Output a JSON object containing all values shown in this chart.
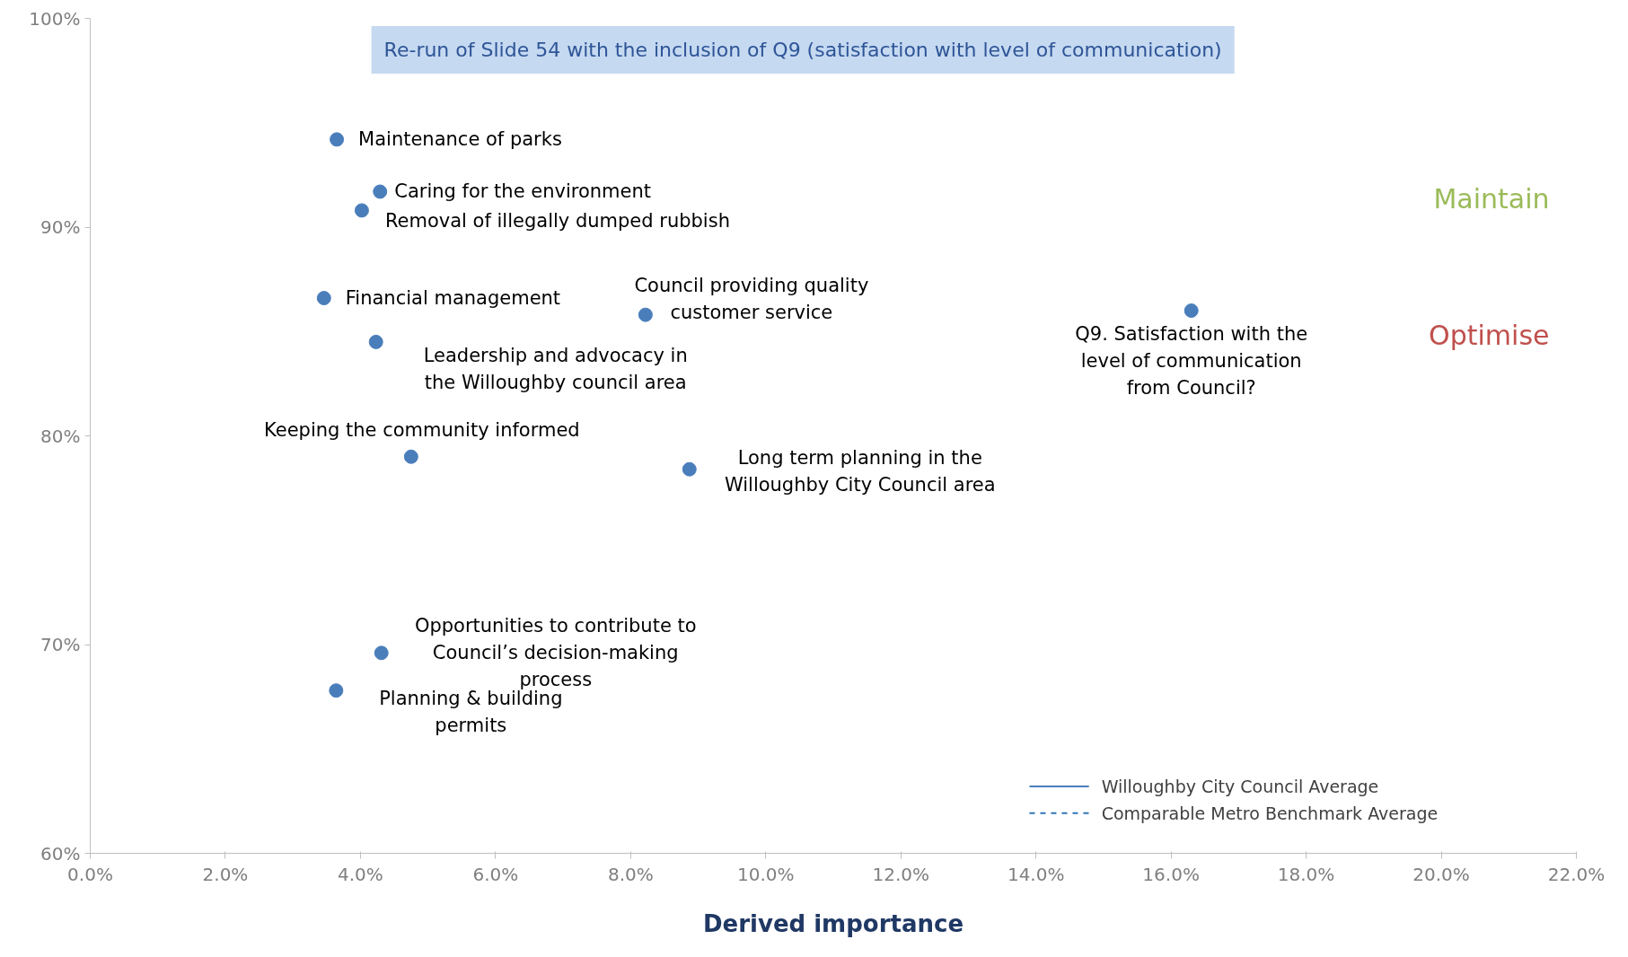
{
  "chart_data": {
    "type": "scatter",
    "title": "Re-run of Slide 54 with the inclusion of Q9 (satisfaction with level of communication)",
    "xlabel": "Derived importance",
    "x": [
      3.65,
      4.29,
      4.02,
      3.46,
      8.22,
      4.23,
      4.75,
      8.87,
      16.3,
      4.31,
      3.64
    ],
    "series": [
      {
        "color": "#4a7ebb",
        "values": [
          94.2,
          91.7,
          90.8,
          86.6,
          85.8,
          84.5,
          79.0,
          78.4,
          86.0,
          69.6,
          67.8
        ]
      },
      {
        "name": "Willoughby City Council Average",
        "type": "line",
        "color": "#4a7ebb",
        "line_style": "solid",
        "values": [
          null,
          null,
          null,
          null,
          null,
          null,
          null,
          null,
          null,
          null,
          null
        ]
      },
      {
        "name": "Comparable Metro Benchmark Average",
        "type": "line",
        "color": "#2e75b6",
        "line_style": "dashed",
        "values": [
          null,
          null,
          null,
          null,
          null,
          null,
          null,
          null,
          null,
          null,
          null
        ]
      }
    ],
    "xlim": [
      0,
      22
    ],
    "ylim": [
      60,
      100
    ],
    "xticks": [
      {
        "value": 0,
        "label": "0.0%"
      },
      {
        "value": 2,
        "label": "2.0%"
      },
      {
        "value": 4,
        "label": "4.0%"
      },
      {
        "value": 6,
        "label": "6.0%"
      },
      {
        "value": 8,
        "label": "8.0%"
      },
      {
        "value": 10,
        "label": "10.0%"
      },
      {
        "value": 12,
        "label": "12.0%"
      },
      {
        "value": 14,
        "label": "14.0%"
      },
      {
        "value": 16,
        "label": "16.0%"
      },
      {
        "value": 18,
        "label": "18.0%"
      },
      {
        "value": 20,
        "label": "20.0%"
      },
      {
        "value": 22,
        "label": "22.0%"
      }
    ],
    "yticks": [
      {
        "value": 60,
        "label": "60%"
      },
      {
        "value": 70,
        "label": "70%"
      },
      {
        "value": 80,
        "label": "80%"
      },
      {
        "value": 90,
        "label": "90%"
      },
      {
        "value": 100,
        "label": "100%"
      }
    ],
    "marker": "circle",
    "grid": false,
    "legend": "bottom right",
    "annotations": [
      {
        "text": "Maintenance of parks",
        "x": 3.65,
        "y": 94.2
      },
      {
        "text": "Caring for the environment",
        "x": 4.29,
        "y": 91.7
      },
      {
        "text": "Removal of illegally dumped rubbish",
        "x": 4.02,
        "y": 90.8
      },
      {
        "text": "Financial management",
        "x": 3.46,
        "y": 86.6
      },
      {
        "text": "Council providing quality\ncustomer service",
        "x": 8.22,
        "y": 85.8
      },
      {
        "text": "Leadership and advocacy in\nthe Willoughby council area",
        "x": 4.23,
        "y": 84.5
      },
      {
        "text": "Keeping the community informed",
        "x": 4.75,
        "y": 79.0
      },
      {
        "text": "Long term planning in the\nWilloughby City Council area",
        "x": 8.87,
        "y": 78.4
      },
      {
        "text": "Q9. Satisfaction with the\nlevel of communication\nfrom Council?",
        "x": 16.3,
        "y": 86.0
      },
      {
        "text": "Opportunities to contribute to\nCouncil’s decision-making\nprocess",
        "x": 4.31,
        "y": 69.6
      },
      {
        "text": "Planning & building\npermits",
        "x": 3.64,
        "y": 67.8
      },
      "Maintain",
      "Optimise"
    ]
  }
}
